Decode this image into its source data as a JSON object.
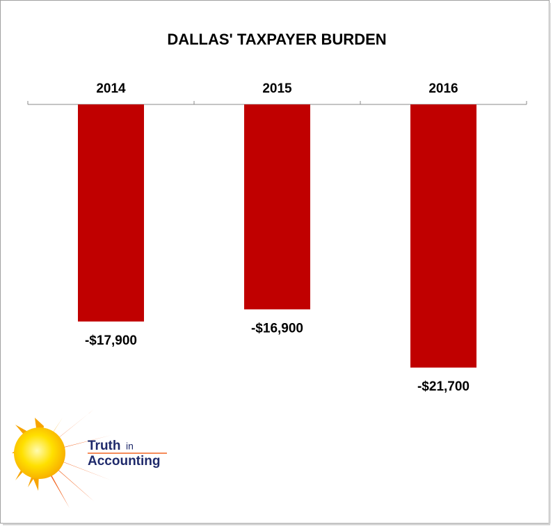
{
  "chart_data": {
    "type": "bar",
    "title": "DALLAS' TAXPAYER BURDEN",
    "categories": [
      "2014",
      "2015",
      "2016"
    ],
    "values": [
      -17900,
      -16900,
      -21700
    ],
    "value_labels": [
      "-$17,900",
      "-$16,900",
      "-$21,700"
    ],
    "color": "#c00000"
  },
  "logo": {
    "word1": "Truth",
    "word2": "in",
    "word3": "Accounting"
  }
}
